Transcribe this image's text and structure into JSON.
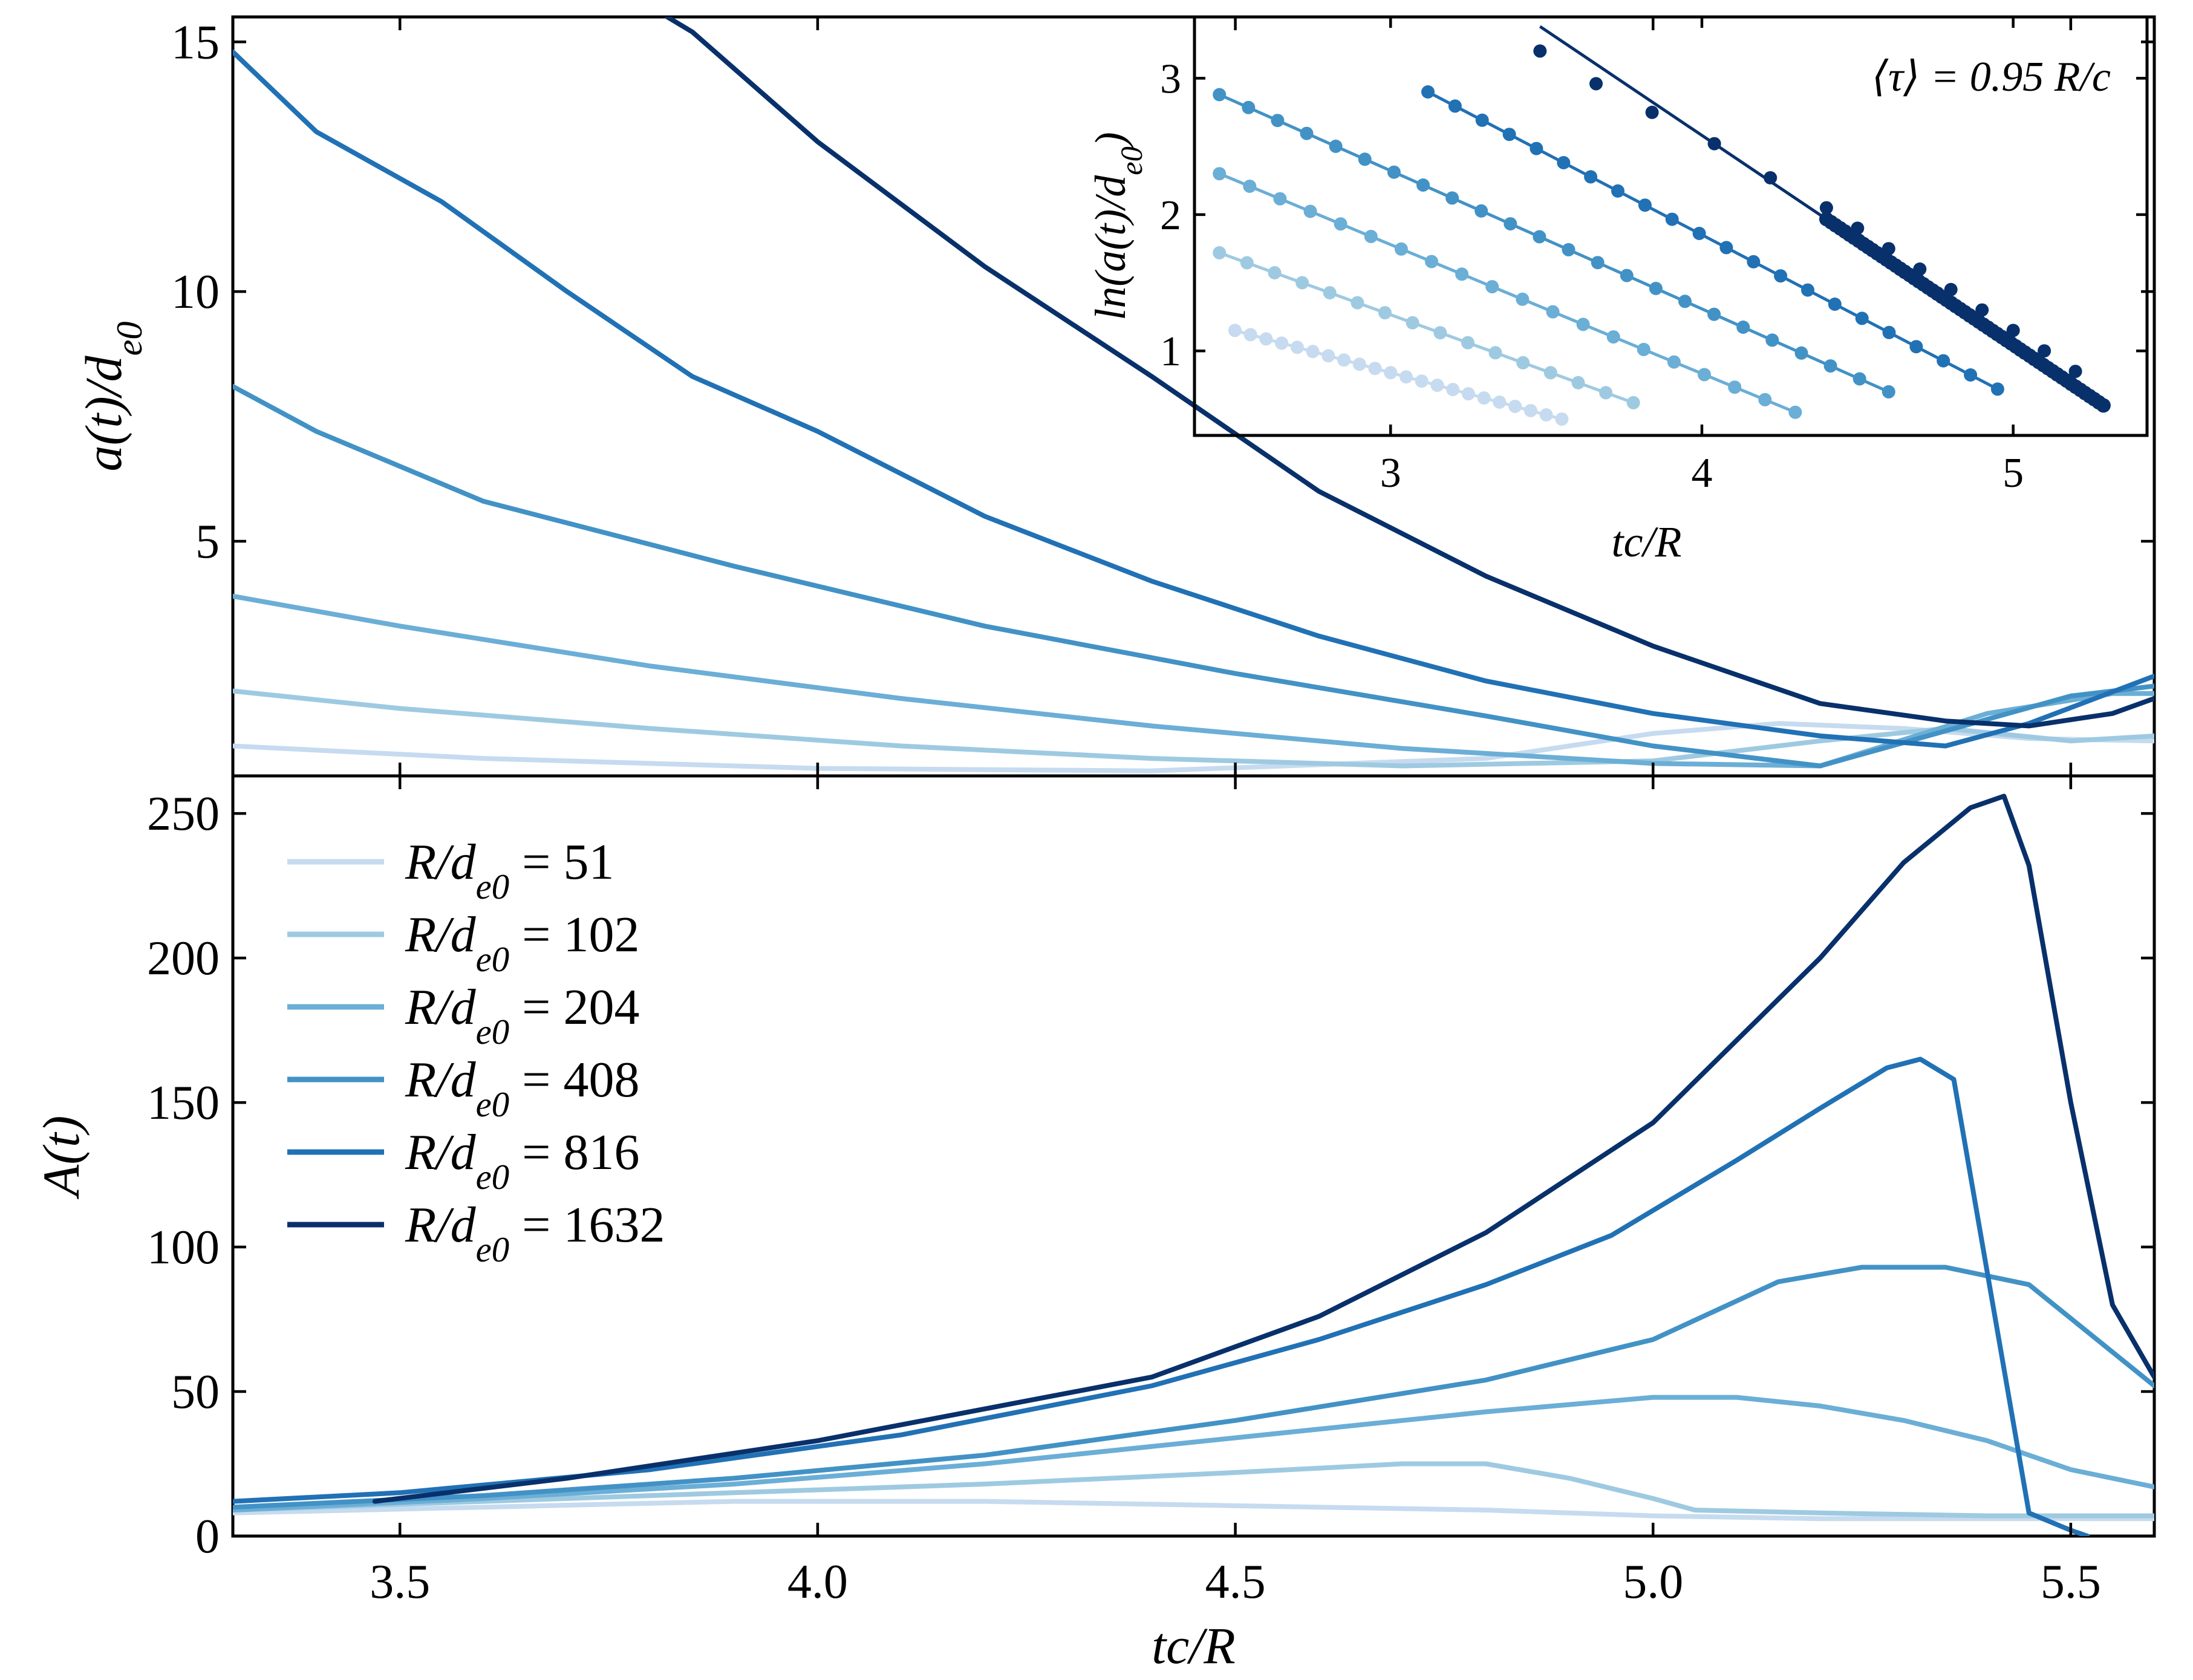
{
  "chart_data": [
    {
      "id": "top",
      "type": "line",
      "title": "",
      "xlabel": "",
      "ylabel": "a(t)/d_e0",
      "ylabel_display": "a(t)/d",
      "ylabel_sub": "e0",
      "xlim": [
        3.3,
        5.6
      ],
      "ylim": [
        0.3,
        15.5
      ],
      "xticks": [
        3.5,
        4.0,
        4.5,
        5.0,
        5.5
      ],
      "yticks": [
        5,
        10,
        15
      ],
      "ytick_labels": [
        "5",
        "10",
        "15"
      ],
      "series": [
        {
          "name": "R/d_e0 = 51",
          "color": "#c6dbef",
          "x": [
            3.3,
            3.6,
            4.0,
            4.4,
            4.8,
            5.0,
            5.15,
            5.3,
            5.45,
            5.6
          ],
          "y": [
            0.9,
            0.65,
            0.45,
            0.4,
            0.65,
            1.15,
            1.35,
            1.25,
            1.05,
            1.0
          ]
        },
        {
          "name": "R/d_e0 = 102",
          "color": "#9ecae1",
          "x": [
            3.3,
            3.5,
            3.8,
            4.1,
            4.4,
            4.7,
            5.0,
            5.2,
            5.35,
            5.5,
            5.6
          ],
          "y": [
            2.0,
            1.65,
            1.25,
            0.9,
            0.65,
            0.5,
            0.6,
            1.0,
            1.25,
            1.0,
            1.1
          ]
        },
        {
          "name": "R/d_e0 = 204",
          "color": "#6baed6",
          "x": [
            3.3,
            3.5,
            3.8,
            4.1,
            4.4,
            4.7,
            5.0,
            5.2,
            5.4,
            5.55,
            5.6
          ],
          "y": [
            3.9,
            3.3,
            2.5,
            1.85,
            1.3,
            0.85,
            0.55,
            0.5,
            1.55,
            1.95,
            1.95
          ]
        },
        {
          "name": "R/d_e0 = 408",
          "color": "#4292c6",
          "x": [
            3.3,
            3.4,
            3.6,
            3.9,
            4.2,
            4.5,
            4.8,
            5.0,
            5.2,
            5.35,
            5.5,
            5.6
          ],
          "y": [
            8.1,
            7.2,
            5.8,
            4.5,
            3.3,
            2.35,
            1.5,
            0.9,
            0.5,
            1.2,
            1.9,
            2.1
          ]
        },
        {
          "name": "R/d_e0 = 816",
          "color": "#2171b5",
          "x": [
            3.3,
            3.4,
            3.55,
            3.7,
            3.85,
            4.0,
            4.2,
            4.4,
            4.6,
            4.8,
            5.0,
            5.2,
            5.35,
            5.45,
            5.6
          ],
          "y": [
            14.8,
            13.2,
            11.8,
            10.0,
            8.3,
            7.2,
            5.5,
            4.2,
            3.1,
            2.2,
            1.55,
            1.1,
            0.9,
            1.35,
            2.3
          ]
        },
        {
          "name": "R/d_e0 = 1632",
          "color": "#08306b",
          "x": [
            3.82,
            3.85,
            4.0,
            4.2,
            4.4,
            4.6,
            4.8,
            5.0,
            5.2,
            5.35,
            5.45,
            5.55,
            5.6
          ],
          "y": [
            15.5,
            15.2,
            13.0,
            10.5,
            8.3,
            6.0,
            4.3,
            2.9,
            1.75,
            1.4,
            1.3,
            1.55,
            1.85
          ]
        }
      ]
    },
    {
      "id": "inset",
      "type": "scatter",
      "xlabel": "tc/R",
      "ylabel": "ln(a(t)/d_e0)",
      "ylabel_display": "ln(a(t)/d",
      "ylabel_sub": "e0",
      "ylabel_close": ")",
      "xlim": [
        2.37,
        5.43
      ],
      "ylim": [
        0.38,
        3.45
      ],
      "xticks": [
        3,
        4,
        5
      ],
      "xtick_labels": [
        "3",
        "4",
        "5"
      ],
      "yticks": [
        1,
        2,
        3
      ],
      "ytick_labels": [
        "1",
        "2",
        "3"
      ],
      "annotation": "⟨τ⟩ = 0.95 R/c",
      "series": [
        {
          "name": "R/d_e0 = 51",
          "color": "#c6dbef",
          "x_start": 2.5,
          "x_end": 3.55,
          "y_start": 1.15,
          "y_end": 0.5,
          "n": 22
        },
        {
          "name": "R/d_e0 = 102",
          "color": "#9ecae1",
          "x_start": 2.45,
          "x_end": 3.78,
          "y_start": 1.72,
          "y_end": 0.62,
          "n": 16
        },
        {
          "name": "R/d_e0 = 204",
          "color": "#6baed6",
          "x_start": 2.45,
          "x_end": 4.3,
          "y_start": 2.3,
          "y_end": 0.55,
          "n": 20
        },
        {
          "name": "R/d_e0 = 408",
          "color": "#4292c6",
          "x_start": 2.45,
          "x_end": 4.6,
          "y_start": 2.88,
          "y_end": 0.7,
          "n": 24
        },
        {
          "name": "R/d_e0 = 816",
          "color": "#2171b5",
          "x_start": 3.12,
          "x_end": 4.95,
          "y_start": 2.9,
          "y_end": 0.72,
          "n": 22
        },
        {
          "name": "R/d_e0 = 1632",
          "color": "#08306b",
          "x": [
            3.48,
            3.66,
            3.84,
            4.04,
            4.22,
            4.4,
            4.5,
            4.6,
            4.7,
            4.8,
            4.9,
            5.0,
            5.1,
            5.2,
            5.29
          ],
          "y": [
            3.2,
            2.96,
            2.75,
            2.52,
            2.27,
            2.05,
            1.9,
            1.75,
            1.6,
            1.45,
            1.3,
            1.15,
            1.0,
            0.85,
            0.6
          ],
          "fit_x": [
            3.48,
            5.29
          ],
          "fit_y": [
            3.38,
            0.6
          ]
        }
      ]
    },
    {
      "id": "bottom",
      "type": "line",
      "xlabel": "tc/R",
      "ylabel": "A(t)",
      "xlim": [
        3.3,
        5.6
      ],
      "ylim": [
        0,
        263
      ],
      "xticks": [
        3.5,
        4.0,
        4.5,
        5.0,
        5.5
      ],
      "xtick_labels": [
        "3.5",
        "4.0",
        "4.5",
        "5.0",
        "5.5"
      ],
      "yticks": [
        0,
        50,
        100,
        150,
        200,
        250
      ],
      "ytick_labels": [
        "0",
        "50",
        "100",
        "150",
        "200",
        "250"
      ],
      "legend": {
        "position": "upper-left",
        "label_prefix": "R/d",
        "label_sub": "e0",
        "label_eq": " = "
      },
      "series": [
        {
          "name": "R/d_e0 = 51",
          "value": "51",
          "color": "#c6dbef",
          "x": [
            3.3,
            3.6,
            3.9,
            4.2,
            4.4,
            4.6,
            4.8,
            5.0,
            5.2,
            5.4,
            5.6
          ],
          "y": [
            8,
            10,
            12,
            12,
            11,
            10,
            9,
            7,
            6,
            6,
            6
          ]
        },
        {
          "name": "R/d_e0 = 102",
          "value": "102",
          "color": "#9ecae1",
          "x": [
            3.3,
            3.6,
            3.9,
            4.2,
            4.5,
            4.7,
            4.8,
            4.9,
            5.0,
            5.05,
            5.2,
            5.4,
            5.6
          ],
          "y": [
            9,
            12,
            15,
            18,
            22,
            25,
            25,
            20,
            13,
            9,
            8,
            7,
            7
          ]
        },
        {
          "name": "R/d_e0 = 204",
          "value": "204",
          "color": "#6baed6",
          "x": [
            3.3,
            3.6,
            3.9,
            4.2,
            4.5,
            4.8,
            5.0,
            5.1,
            5.2,
            5.3,
            5.4,
            5.5,
            5.6
          ],
          "y": [
            9,
            13,
            18,
            25,
            34,
            43,
            48,
            48,
            45,
            40,
            33,
            23,
            17
          ]
        },
        {
          "name": "R/d_e0 = 408",
          "value": "408",
          "color": "#4292c6",
          "x": [
            3.3,
            3.6,
            3.9,
            4.2,
            4.5,
            4.8,
            5.0,
            5.15,
            5.25,
            5.35,
            5.45,
            5.6
          ],
          "y": [
            10,
            14,
            20,
            28,
            40,
            54,
            68,
            88,
            93,
            93,
            87,
            52
          ]
        },
        {
          "name": "R/d_e0 = 816",
          "value": "816",
          "color": "#2171b5",
          "x": [
            3.3,
            3.5,
            3.8,
            4.1,
            4.4,
            4.6,
            4.8,
            4.95,
            5.1,
            5.2,
            5.28,
            5.32,
            5.36,
            5.45,
            5.5,
            5.52
          ],
          "y": [
            12,
            15,
            23,
            35,
            52,
            68,
            87,
            104,
            130,
            148,
            162,
            165,
            158,
            8,
            2,
            0
          ]
        },
        {
          "name": "R/d_e0 = 1632",
          "value": "1632",
          "color": "#08306b",
          "x": [
            3.47,
            3.7,
            4.0,
            4.2,
            4.4,
            4.6,
            4.8,
            5.0,
            5.2,
            5.3,
            5.38,
            5.42,
            5.45,
            5.5,
            5.55,
            5.6
          ],
          "y": [
            12,
            20,
            33,
            44,
            55,
            76,
            105,
            143,
            200,
            233,
            252,
            256,
            232,
            150,
            80,
            55
          ]
        }
      ]
    }
  ]
}
